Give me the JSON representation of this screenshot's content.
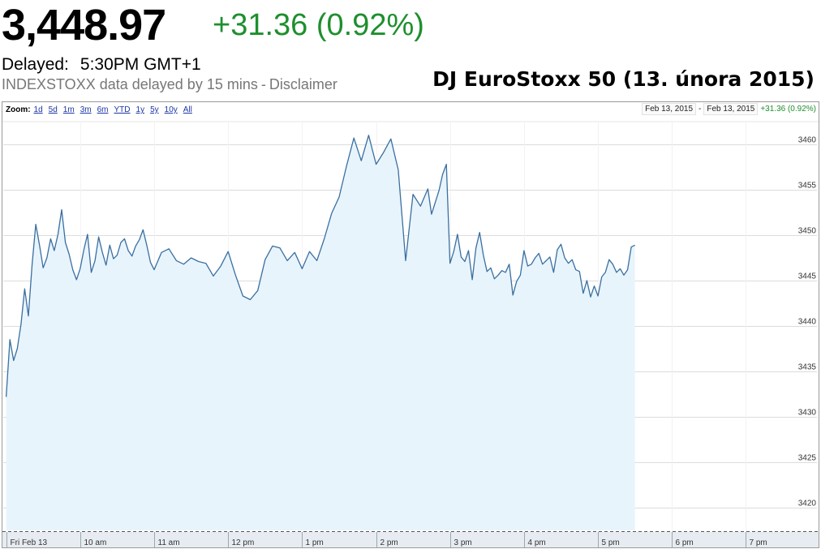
{
  "quote": {
    "price": "3,448.97",
    "change": "+31.36 (0.92%)",
    "delayed_label": "Delayed:",
    "delayed_time": "5:30PM GMT+1",
    "source_name": "INDEXSTOXX",
    "source_text": "data delayed by 15 mins",
    "separator": "-",
    "disclaimer_link": "Disclaimer"
  },
  "caption": "DJ EuroStoxx 50 (13. února 2015)",
  "zoom": {
    "label": "Zoom:",
    "options": [
      "1d",
      "5d",
      "1m",
      "3m",
      "6m",
      "YTD",
      "1y",
      "5y",
      "10y",
      "All"
    ]
  },
  "range": {
    "from": "Feb 13, 2015",
    "separator": "-",
    "to": "Feb 13, 2015",
    "change": "+31.36 (0.92%)"
  },
  "colors": {
    "line": "#3a6fa0",
    "area": "#e8f4fc",
    "positive": "#1e8f2e",
    "grid": "#dcdcdc"
  },
  "chart_data": {
    "type": "area",
    "y_ticks": [
      3420,
      3425,
      3430,
      3435,
      3440,
      3445,
      3450,
      3455,
      3460
    ],
    "ylim": [
      3417.5,
      3462.5
    ],
    "x_ticks": [
      {
        "label": "Fri Feb 13",
        "t": 9.0
      },
      {
        "label": "10 am",
        "t": 10.0
      },
      {
        "label": "11 am",
        "t": 11.0
      },
      {
        "label": "12 pm",
        "t": 12.0
      },
      {
        "label": "1 pm",
        "t": 13.0
      },
      {
        "label": "2 pm",
        "t": 14.0
      },
      {
        "label": "3 pm",
        "t": 15.0
      },
      {
        "label": "4 pm",
        "t": 16.0
      },
      {
        "label": "5 pm",
        "t": 17.0
      },
      {
        "label": "6 pm",
        "t": 18.0
      },
      {
        "label": "7 pm",
        "t": 19.0
      }
    ],
    "xlim": [
      8.96,
      19.96
    ],
    "grid": true,
    "series": [
      {
        "x": [
          9.0,
          9.05,
          9.1,
          9.15,
          9.2,
          9.25,
          9.3,
          9.35,
          9.4,
          9.45,
          9.5,
          9.55,
          9.6,
          9.65,
          9.7,
          9.75,
          9.8,
          9.85,
          9.9,
          9.95,
          10.0,
          10.05,
          10.1,
          10.15,
          10.2,
          10.25,
          10.3,
          10.35,
          10.4,
          10.45,
          10.5,
          10.55,
          10.6,
          10.65,
          10.7,
          10.75,
          10.8,
          10.85,
          10.9,
          10.95,
          11.0,
          11.1,
          11.2,
          11.3,
          11.4,
          11.5,
          11.6,
          11.7,
          11.8,
          11.9,
          12.0,
          12.1,
          12.2,
          12.3,
          12.4,
          12.5,
          12.6,
          12.7,
          12.8,
          12.9,
          13.0,
          13.1,
          13.2,
          13.3,
          13.4,
          13.5,
          13.6,
          13.7,
          13.8,
          13.9,
          14.0,
          14.1,
          14.2,
          14.3,
          14.4,
          14.5,
          14.6,
          14.7,
          14.75,
          14.8,
          14.85,
          14.9,
          14.95,
          15.0,
          15.05,
          15.1,
          15.15,
          15.2,
          15.25,
          15.3,
          15.35,
          15.4,
          15.45,
          15.5,
          15.55,
          15.6,
          15.65,
          15.7,
          15.75,
          15.8,
          15.85,
          15.9,
          15.95,
          16.0,
          16.05,
          16.1,
          16.15,
          16.2,
          16.25,
          16.3,
          16.35,
          16.4,
          16.45,
          16.5,
          16.55,
          16.6,
          16.65,
          16.7,
          16.75,
          16.8,
          16.85,
          16.9,
          16.95,
          17.0,
          17.05,
          17.1,
          17.15,
          17.2,
          17.25,
          17.3,
          17.35,
          17.4,
          17.45,
          17.5
        ],
        "values": [
          3432.2,
          3438.5,
          3436.2,
          3437.5,
          3440.2,
          3444.1,
          3441.1,
          3446.8,
          3451.2,
          3448.9,
          3446.4,
          3447.5,
          3449.6,
          3448.3,
          3450.1,
          3452.8,
          3449.2,
          3447.9,
          3446.2,
          3445.1,
          3446.3,
          3448.4,
          3450.1,
          3445.9,
          3447.2,
          3449.8,
          3448.1,
          3446.7,
          3448.9,
          3447.4,
          3447.8,
          3449.2,
          3449.6,
          3448.3,
          3447.7,
          3448.8,
          3449.5,
          3450.6,
          3448.9,
          3447.0,
          3446.2,
          3448.1,
          3448.5,
          3447.2,
          3446.8,
          3447.5,
          3447.1,
          3446.9,
          3445.5,
          3446.6,
          3448.2,
          3445.6,
          3443.3,
          3442.9,
          3443.9,
          3447.3,
          3448.8,
          3448.6,
          3447.2,
          3448.1,
          3446.3,
          3448.2,
          3447.2,
          3449.6,
          3452.4,
          3454.2,
          3457.6,
          3460.7,
          3458.2,
          3461.0,
          3457.8,
          3459.1,
          3460.6,
          3457.2,
          3447.2,
          3454.5,
          3453.2,
          3455.1,
          3452.3,
          3453.6,
          3454.9,
          3456.7,
          3457.8,
          3446.9,
          3448.2,
          3450.1,
          3447.6,
          3447.1,
          3448.3,
          3445.1,
          3448.6,
          3450.3,
          3447.8,
          3446.0,
          3446.4,
          3445.2,
          3445.6,
          3446.1,
          3445.9,
          3446.8,
          3443.4,
          3444.9,
          3445.6,
          3448.3,
          3446.6,
          3446.8,
          3447.5,
          3448.0,
          3446.8,
          3447.2,
          3447.6,
          3445.9,
          3448.4,
          3449.0,
          3447.5,
          3446.9,
          3447.3,
          3446.2,
          3446.0,
          3443.6,
          3445.0,
          3443.2,
          3444.4,
          3443.3,
          3445.4,
          3445.9,
          3447.3,
          3446.8,
          3445.9,
          3446.3,
          3445.6,
          3446.2,
          3448.7,
          3448.9
        ]
      }
    ]
  }
}
